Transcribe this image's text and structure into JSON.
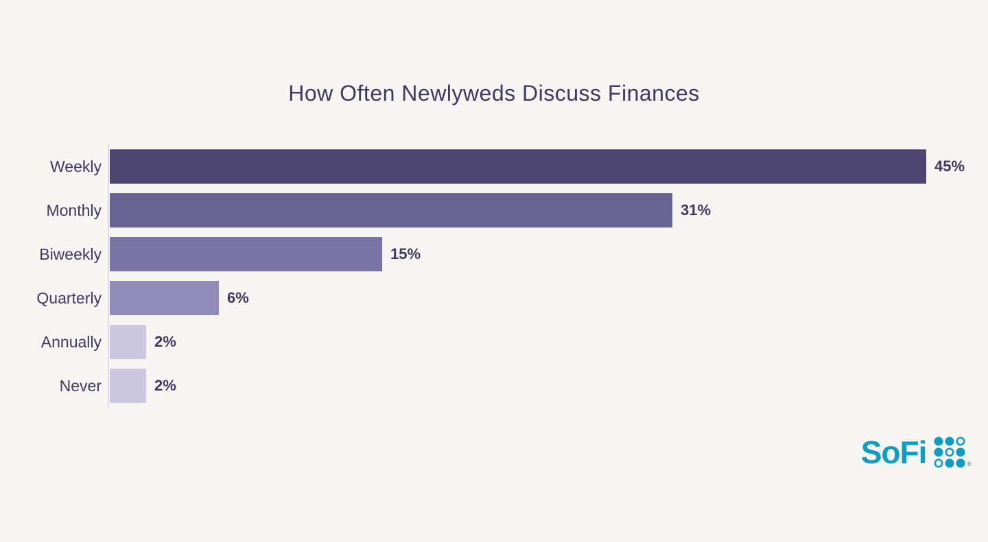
{
  "page": {
    "background_color": "#f7f5f1",
    "text_color": "#3d3960"
  },
  "chart_data": {
    "type": "bar",
    "orientation": "horizontal",
    "title": "How Often Newlyweds Discuss Finances",
    "categories": [
      "Weekly",
      "Monthly",
      "Biweekly",
      "Quarterly",
      "Annually",
      "Never"
    ],
    "values": [
      45,
      31,
      15,
      6,
      2,
      2
    ],
    "value_labels": [
      "45%",
      "31%",
      "15%",
      "6%",
      "2%",
      "2%"
    ],
    "bar_colors": [
      "#4c4670",
      "#6a6494",
      "#7972a5",
      "#938dbb",
      "#cac7de",
      "#cac7de"
    ],
    "xlabel": "",
    "ylabel": "",
    "xlim": [
      0,
      45
    ],
    "grid": false,
    "legend": false,
    "axis_line_color": "#dedce4",
    "label_color": "#3d3960"
  },
  "branding": {
    "logo_text": "SoFi",
    "registered_mark": "®",
    "logo_color": "#0f9dc2",
    "logo_icon": "sofi-dots-grid-icon"
  }
}
